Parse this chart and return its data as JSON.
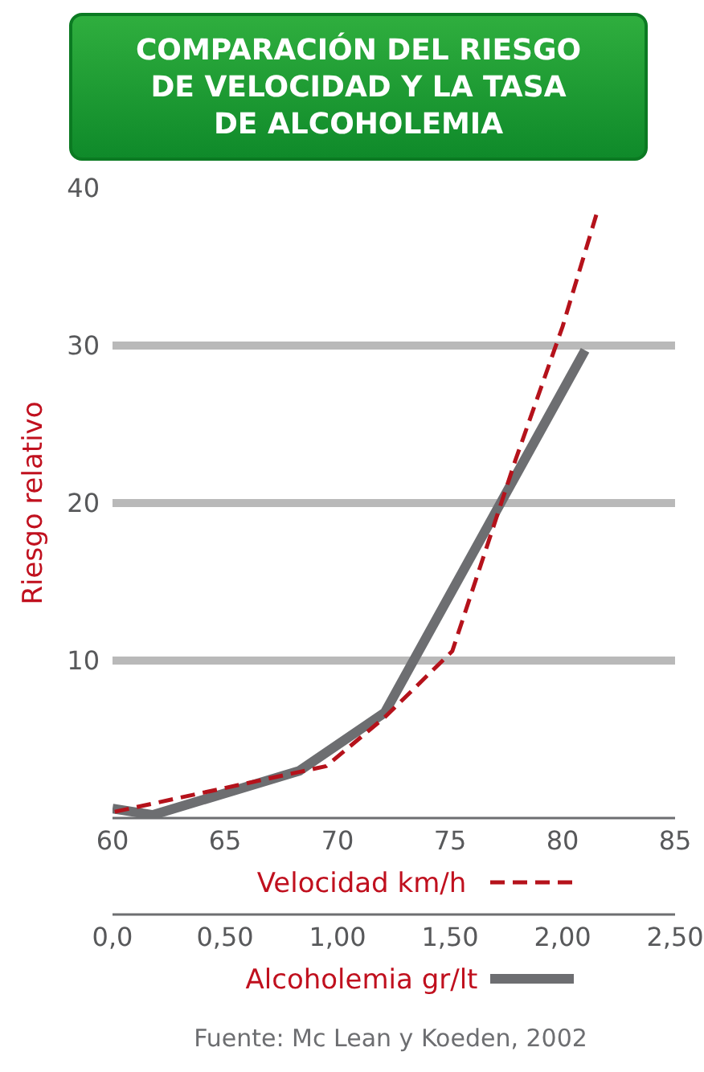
{
  "chart_data": {
    "type": "line",
    "title": "COMPARACIÓN DEL RIESGO DE VELOCIDAD Y LA TASA DE ALCOHOLEMIA",
    "xlabel": "Velocidad km/h",
    "x2label": "Alcoholemia gr/lt",
    "ylabel": "Riesgo relativo",
    "xlim": [
      60,
      85
    ],
    "xticks": [
      60,
      65,
      70,
      75,
      80,
      85
    ],
    "x2lim": [
      0,
      2.5
    ],
    "x2ticks": [
      {
        "value": 0,
        "label": "0,0"
      },
      {
        "value": 0.5,
        "label": "0,50"
      },
      {
        "value": 1,
        "label": "1,00"
      },
      {
        "value": 1.5,
        "label": "1,50"
      },
      {
        "value": 2,
        "label": "2,00"
      },
      {
        "value": 2.5,
        "label": "2,50"
      }
    ],
    "ylim": [
      0,
      40
    ],
    "yticks": [
      10,
      20,
      30,
      40
    ],
    "grid": "y",
    "marker": "none",
    "series": [
      {
        "color": "#b5121b",
        "line_style": "dashed",
        "x": [
          60.1,
          69.5,
          72.1,
          75.1,
          77.9,
          80.0,
          81.5
        ],
        "values": [
          0.4,
          3.3,
          6.4,
          10.6,
          22.7,
          31.2,
          38.3
        ]
      },
      {
        "color": "#6d6e71",
        "line_style": "solid",
        "axis": "x2",
        "x": [
          0.0,
          0.18,
          0.83,
          1.21,
          2.1
        ],
        "values": [
          0.6,
          0.2,
          3.0,
          6.7,
          29.7
        ]
      }
    ],
    "annotations": [
      "Fuente: Mc Lean y Koeden, 2002"
    ]
  }
}
